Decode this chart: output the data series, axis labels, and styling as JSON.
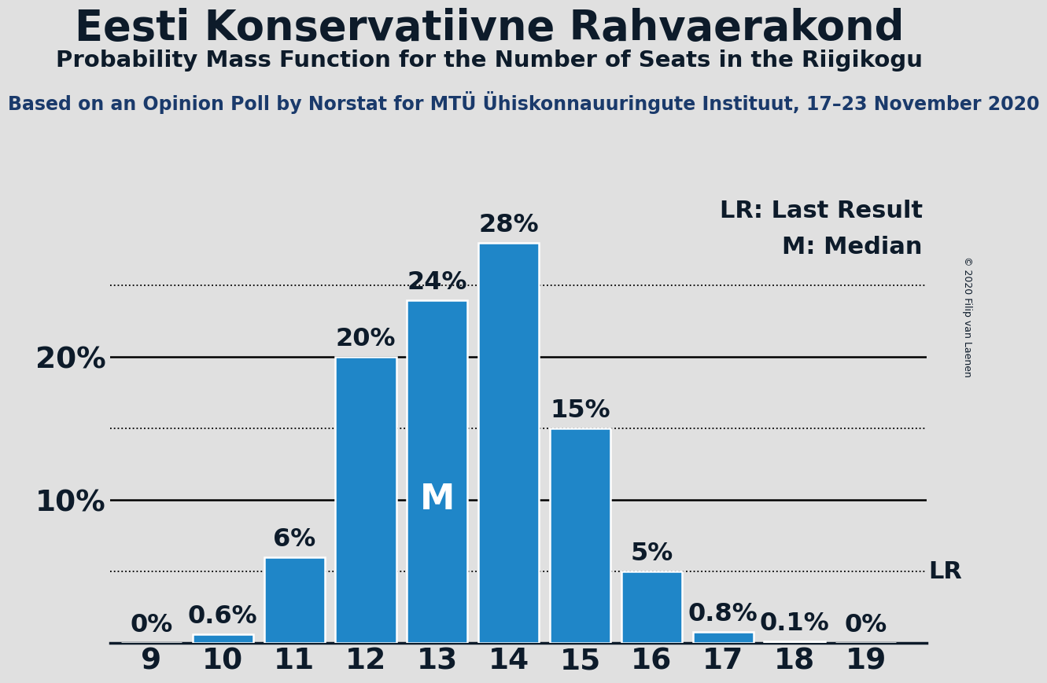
{
  "title": "Eesti Konservatiivne Rahvaerakond",
  "subtitle": "Probability Mass Function for the Number of Seats in the Riigikogu",
  "source_line": "Based on an Opinion Poll by Norstat for MTÜ Ühiskonnauuringute Instituut, 17–23 November 2020",
  "copyright": "© 2020 Filip van Laenen",
  "seats": [
    9,
    10,
    11,
    12,
    13,
    14,
    15,
    16,
    17,
    18,
    19
  ],
  "probabilities": [
    0.0,
    0.6,
    6.0,
    20.0,
    24.0,
    28.0,
    15.0,
    5.0,
    0.8,
    0.1,
    0.0
  ],
  "bar_color": "#1f86c8",
  "bar_edge_color": "#ffffff",
  "background_color": "#e0e0e0",
  "median_seat": 13,
  "lr_value": 5.0,
  "lr_label": "LR",
  "lr_legend": "LR: Last Result",
  "median_legend": "M: Median",
  "median_label": "M",
  "dotted_lines": [
    5.0,
    15.0,
    25.0
  ],
  "solid_lines": [
    10.0,
    20.0
  ],
  "title_fontsize": 38,
  "subtitle_fontsize": 21,
  "source_fontsize": 17,
  "bar_label_fontsize": 23,
  "axis_label_fontsize": 27,
  "legend_fontsize": 22,
  "median_label_fontsize": 32,
  "text_color": "#0d1b2a",
  "source_color": "#1a3a6b",
  "ylim_max": 32
}
